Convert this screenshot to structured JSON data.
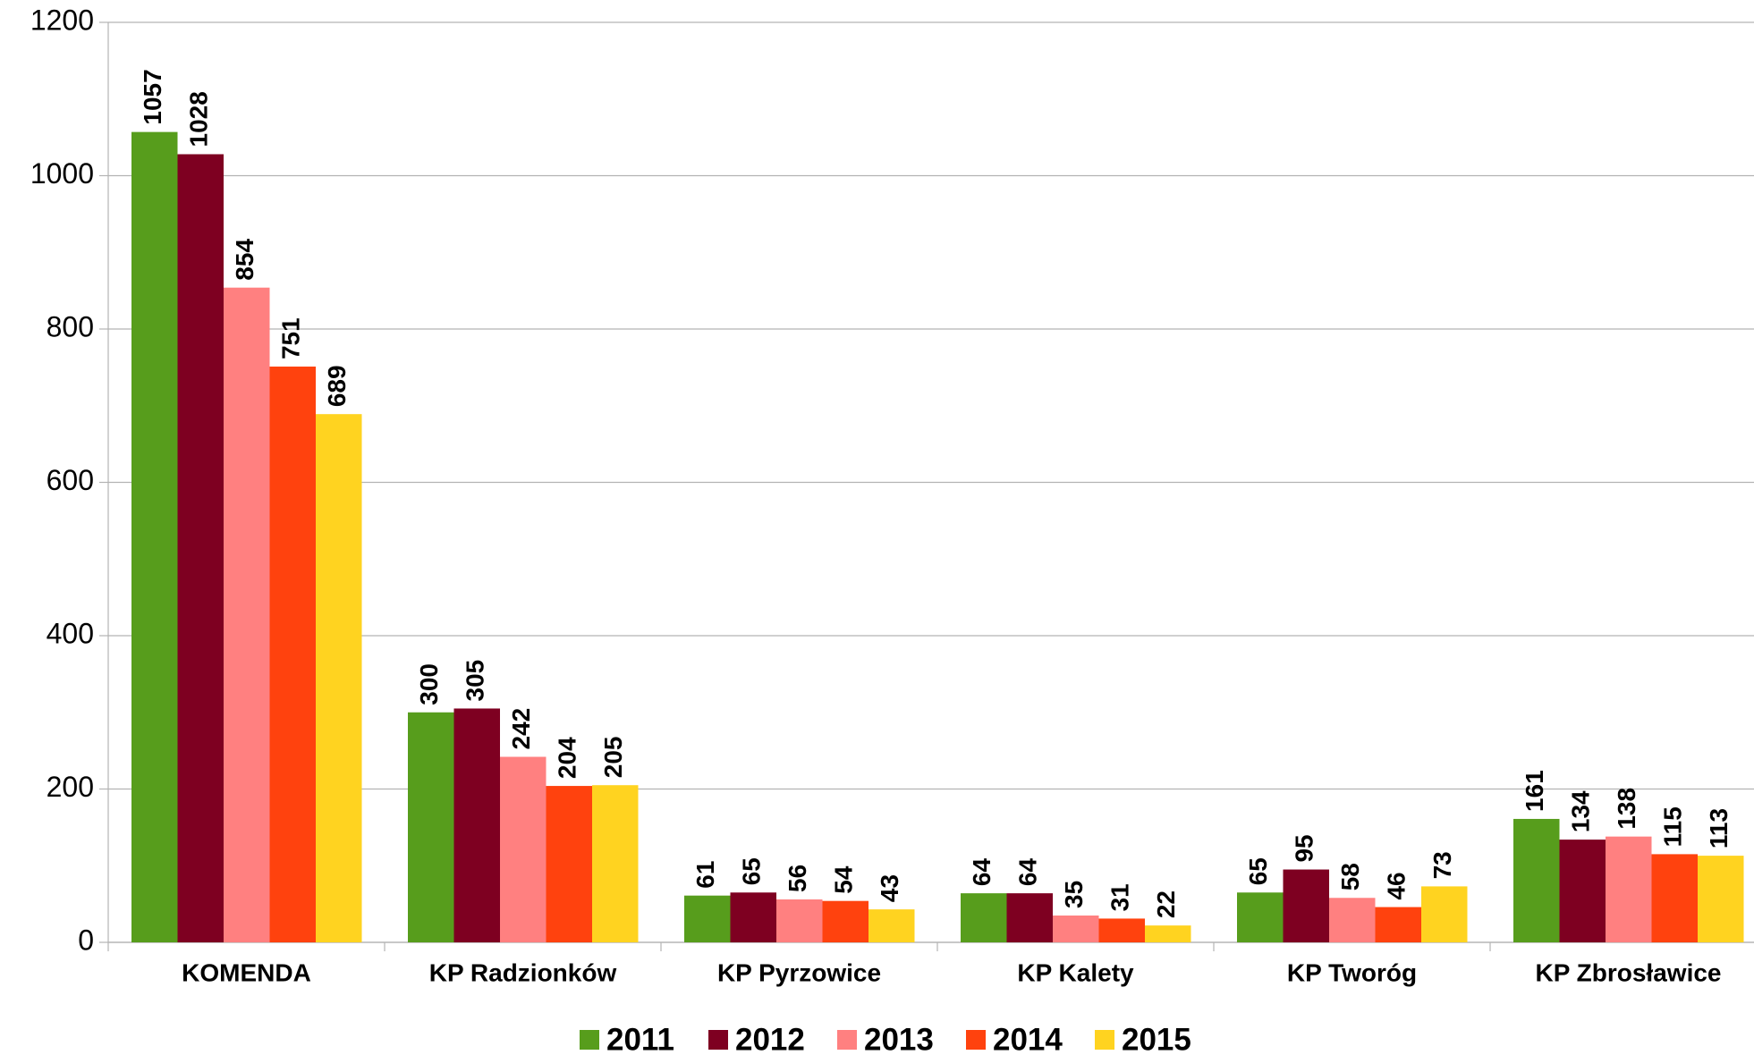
{
  "chart_data": {
    "type": "bar",
    "categories": [
      "KOMENDA",
      "KP Radzionków",
      "KP Pyrzowice",
      "KP Kalety",
      "KP Tworóg",
      "KP Zbrosławice"
    ],
    "series": [
      {
        "name": "2011",
        "color": "#579d1c",
        "values": [
          1057,
          300,
          61,
          64,
          65,
          161
        ]
      },
      {
        "name": "2012",
        "color": "#7e0021",
        "values": [
          1028,
          305,
          65,
          64,
          95,
          134
        ]
      },
      {
        "name": "2013",
        "color": "#ff8080",
        "values": [
          854,
          242,
          56,
          35,
          58,
          138
        ]
      },
      {
        "name": "2014",
        "color": "#ff420e",
        "values": [
          751,
          204,
          54,
          31,
          46,
          115
        ]
      },
      {
        "name": "2015",
        "color": "#ffd320",
        "values": [
          689,
          205,
          43,
          22,
          73,
          113
        ]
      }
    ],
    "ylim": [
      0,
      1200
    ],
    "yticks": [
      0,
      200,
      400,
      600,
      800,
      1000,
      1200
    ],
    "grid": true,
    "legend": "bottom"
  }
}
